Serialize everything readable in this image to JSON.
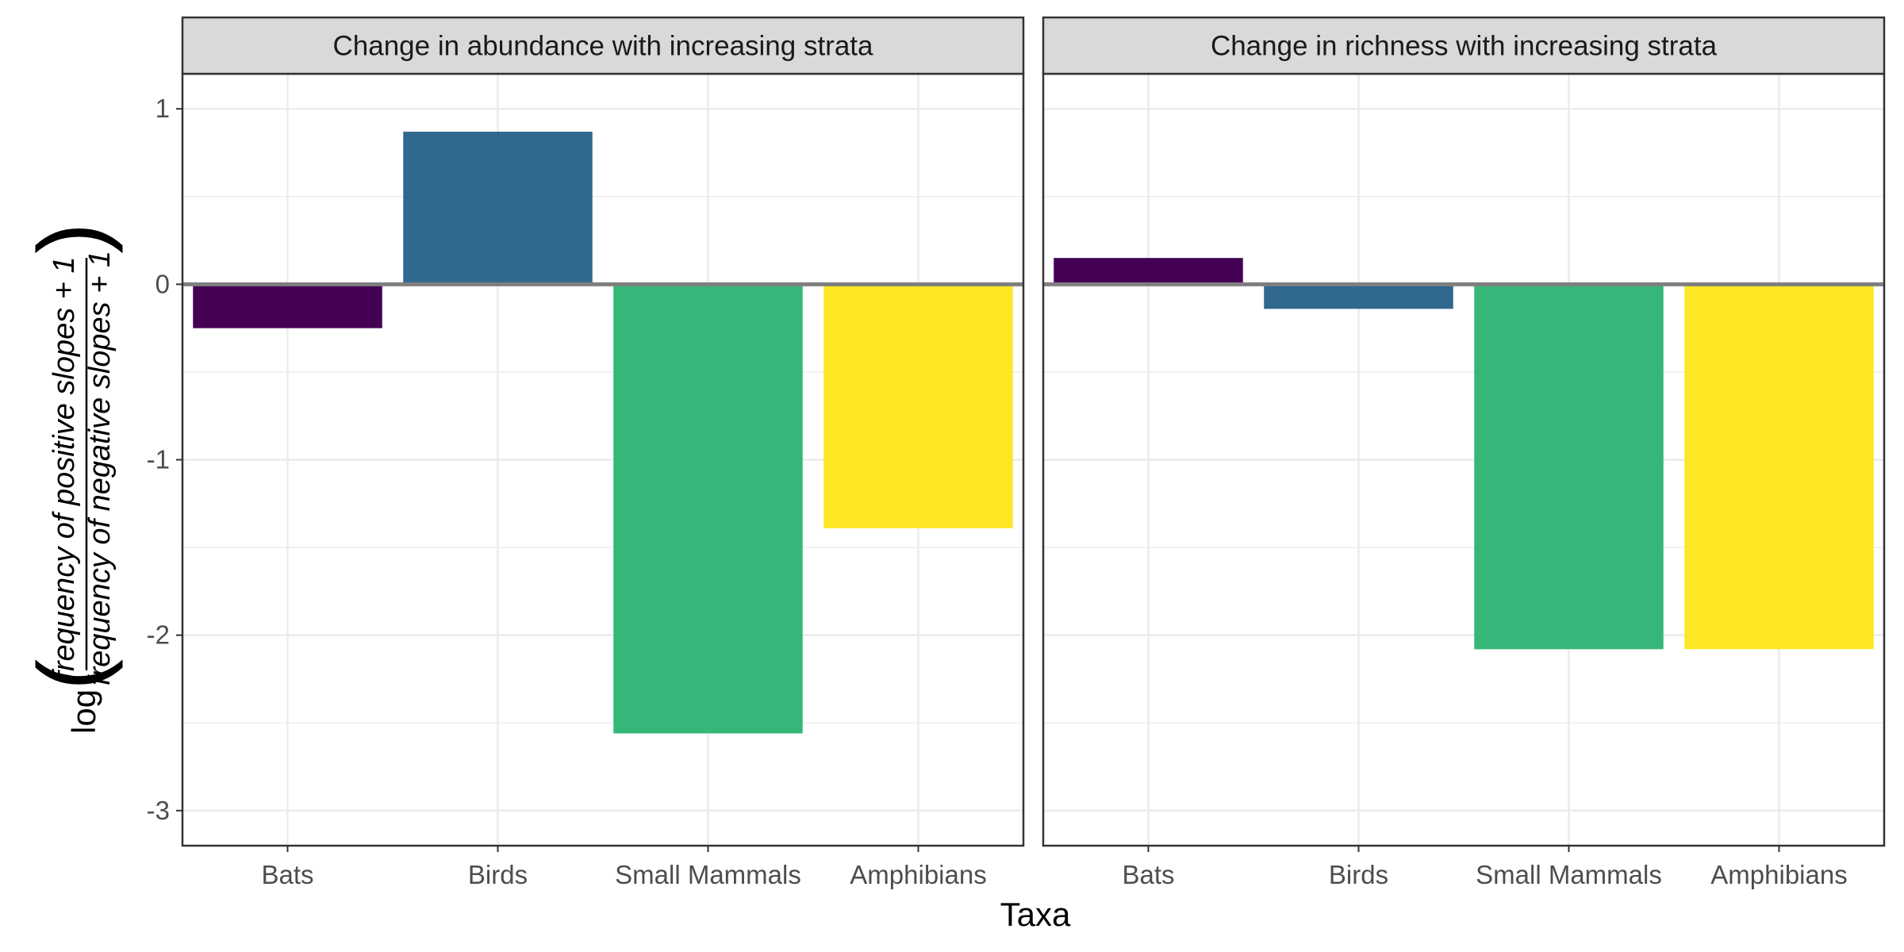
{
  "chart_data": {
    "type": "bar",
    "xlabel": "Taxa",
    "ylabel": {
      "prefix": "log",
      "numerator": "frequency of positive slopes + 1",
      "denominator": "frequency of negative slopes + 1"
    },
    "ylim": [
      -3.2,
      1.2
    ],
    "y_ticks": [
      1,
      0,
      -1,
      -2,
      -3
    ],
    "y_tick_labels": [
      "1",
      "0",
      "-1",
      "-2",
      "-3"
    ],
    "grid": true,
    "legend": "none",
    "categories": [
      "Bats",
      "Birds",
      "Small Mammals",
      "Amphibians"
    ],
    "colors": [
      "#440154",
      "#31688E",
      "#35B779",
      "#FDE725"
    ],
    "panels": [
      {
        "title": "Change in abundance with increasing strata",
        "values": [
          -0.25,
          0.87,
          -2.56,
          -1.39
        ]
      },
      {
        "title": "Change in richness with increasing strata",
        "values": [
          0.15,
          -0.14,
          -2.08,
          -2.08
        ]
      }
    ]
  }
}
